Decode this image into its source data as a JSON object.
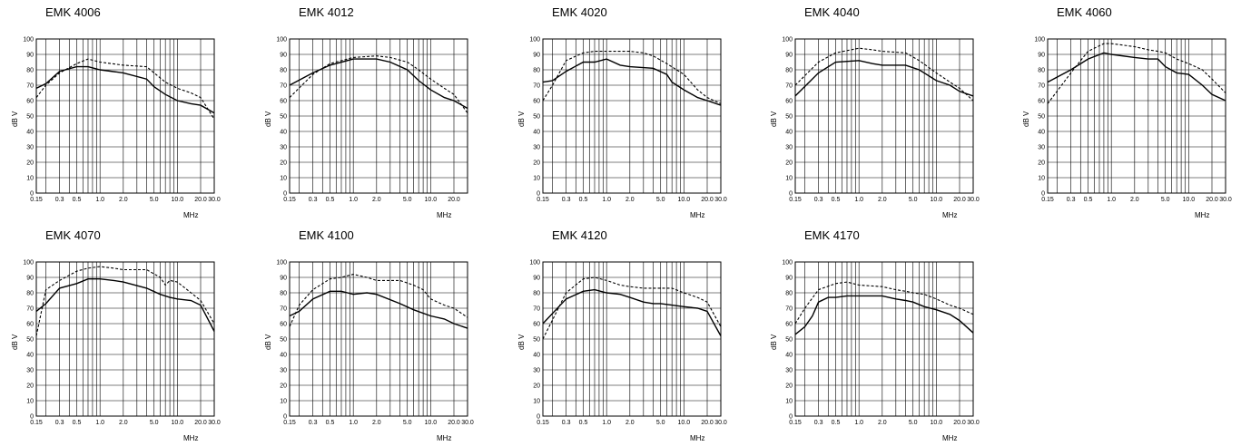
{
  "chart_data": [
    {
      "type": "line",
      "title": "EMK 4006",
      "xlabel": "MHz",
      "ylabel": "dB  V",
      "xlog": true,
      "xlim": [
        0.15,
        30.0
      ],
      "ylim": [
        0,
        100
      ],
      "xticks": [
        "0.15",
        "0.3",
        "0.5",
        "1.0",
        "2.0",
        "5.0",
        "10.0",
        "20.0",
        "30.0"
      ],
      "yticks": [
        "0",
        "10",
        "20",
        "30",
        "40",
        "50",
        "60",
        "70",
        "80",
        "90",
        "100"
      ],
      "series": [
        {
          "style": "solid",
          "x": [
            0.15,
            0.2,
            0.3,
            0.5,
            0.7,
            1.0,
            2.0,
            4.0,
            5.0,
            7.0,
            10.0,
            15.0,
            20.0,
            30.0
          ],
          "y": [
            68,
            71,
            79,
            82,
            82,
            80,
            78,
            74,
            69,
            64,
            60,
            58,
            57,
            52
          ]
        },
        {
          "style": "dashed",
          "x": [
            0.15,
            0.2,
            0.3,
            0.5,
            0.7,
            1.0,
            2.0,
            4.0,
            5.0,
            7.0,
            10.0,
            15.0,
            20.0,
            30.0
          ],
          "y": [
            62,
            70,
            78,
            84,
            87,
            85,
            83,
            82,
            78,
            72,
            68,
            65,
            62,
            48
          ]
        }
      ]
    },
    {
      "type": "line",
      "title": "EMK 4012",
      "xlabel": "MHz",
      "ylabel": "dB  V",
      "xlog": true,
      "xlim": [
        0.15,
        30.0
      ],
      "ylim": [
        0,
        100
      ],
      "xticks": [
        "0.15",
        "0.3",
        "0.5",
        "1.0",
        "2.0",
        "5.0",
        "10.0",
        "20.0"
      ],
      "yticks": [
        "0",
        "10",
        "20",
        "30",
        "40",
        "50",
        "60",
        "70",
        "80",
        "90",
        "100"
      ],
      "series": [
        {
          "style": "solid",
          "x": [
            0.15,
            0.3,
            0.5,
            1.0,
            2.0,
            3.0,
            5.0,
            7.0,
            10.0,
            15.0,
            20.0,
            30.0
          ],
          "y": [
            70,
            78,
            83,
            87,
            87,
            85,
            80,
            73,
            67,
            62,
            60,
            55
          ]
        },
        {
          "style": "dashed",
          "x": [
            0.15,
            0.3,
            0.5,
            1.0,
            2.0,
            3.0,
            5.0,
            7.0,
            10.0,
            15.0,
            20.0,
            30.0
          ],
          "y": [
            62,
            77,
            84,
            88,
            89,
            88,
            85,
            80,
            74,
            68,
            64,
            52
          ]
        }
      ]
    },
    {
      "type": "line",
      "title": "EMK 4020",
      "xlabel": "MHz",
      "ylabel": "dB  V",
      "xlog": true,
      "xlim": [
        0.15,
        30.0
      ],
      "ylim": [
        0,
        100
      ],
      "xticks": [
        "0.15",
        "0.3",
        "0.5",
        "1.0",
        "2.0",
        "5.0",
        "10.0",
        "20.0",
        "30.0"
      ],
      "yticks": [
        "0",
        "10",
        "20",
        "30",
        "40",
        "50",
        "60",
        "70",
        "80",
        "90",
        "100"
      ],
      "series": [
        {
          "style": "solid",
          "x": [
            0.15,
            0.2,
            0.3,
            0.5,
            0.7,
            1.0,
            1.5,
            2.0,
            4.0,
            6.0,
            7.0,
            10.0,
            15.0,
            20.0,
            30.0
          ],
          "y": [
            72,
            73,
            79,
            85,
            85,
            87,
            83,
            82,
            81,
            77,
            72,
            67,
            62,
            60,
            57
          ]
        },
        {
          "style": "dashed",
          "x": [
            0.15,
            0.2,
            0.3,
            0.5,
            0.7,
            1.0,
            2.0,
            3.0,
            4.0,
            6.0,
            10.0,
            15.0,
            20.0,
            30.0
          ],
          "y": [
            60,
            70,
            86,
            91,
            92,
            92,
            92,
            91,
            89,
            84,
            77,
            67,
            62,
            58
          ]
        }
      ]
    },
    {
      "type": "line",
      "title": "EMK 4040",
      "xlabel": "MHz",
      "ylabel": "dB  V",
      "xlog": true,
      "xlim": [
        0.15,
        30.0
      ],
      "ylim": [
        0,
        100
      ],
      "xticks": [
        "0.15",
        "0.3",
        "0.5",
        "1.0",
        "2.0",
        "5.0",
        "10.0",
        "20.0",
        "30.0"
      ],
      "yticks": [
        "0",
        "10",
        "20",
        "30",
        "40",
        "50",
        "60",
        "70",
        "80",
        "90",
        "100"
      ],
      "series": [
        {
          "style": "solid",
          "x": [
            0.15,
            0.3,
            0.5,
            1.0,
            1.5,
            2.0,
            4.0,
            6.0,
            10.0,
            15.0,
            20.0,
            30.0
          ],
          "y": [
            63,
            78,
            85,
            86,
            84,
            83,
            83,
            80,
            73,
            70,
            66,
            63
          ]
        },
        {
          "style": "dashed",
          "x": [
            0.15,
            0.3,
            0.5,
            1.0,
            1.5,
            2.0,
            4.0,
            6.0,
            10.0,
            15.0,
            20.0,
            30.0
          ],
          "y": [
            70,
            85,
            91,
            94,
            93,
            92,
            91,
            86,
            78,
            72,
            68,
            60
          ]
        }
      ]
    },
    {
      "type": "line",
      "title": "EMK 4060",
      "xlabel": "MHz",
      "ylabel": "dB  V",
      "xlog": true,
      "xlim": [
        0.15,
        30.0
      ],
      "ylim": [
        0,
        100
      ],
      "xticks": [
        "0.15",
        "0.3",
        "0.5",
        "1.0",
        "2.0",
        "5.0",
        "10.0",
        "20.0",
        "30.0"
      ],
      "yticks": [
        "0",
        "10",
        "20",
        "30",
        "40",
        "50",
        "60",
        "70",
        "80",
        "90",
        "100"
      ],
      "series": [
        {
          "style": "solid",
          "x": [
            0.15,
            0.3,
            0.5,
            0.8,
            1.0,
            2.0,
            3.0,
            4.0,
            5.0,
            7.0,
            10.0,
            15.0,
            20.0,
            30.0
          ],
          "y": [
            72,
            80,
            87,
            91,
            90,
            88,
            87,
            87,
            82,
            78,
            77,
            70,
            64,
            60
          ]
        },
        {
          "style": "dashed",
          "x": [
            0.15,
            0.3,
            0.5,
            0.8,
            1.0,
            2.0,
            3.0,
            4.0,
            5.0,
            7.0,
            10.0,
            15.0,
            20.0,
            30.0
          ],
          "y": [
            58,
            78,
            92,
            97,
            97,
            95,
            93,
            92,
            91,
            87,
            84,
            80,
            74,
            65
          ]
        }
      ]
    },
    {
      "type": "line",
      "title": "EMK 4070",
      "xlabel": "MHz",
      "ylabel": "dB  V",
      "xlog": true,
      "xlim": [
        0.15,
        30.0
      ],
      "ylim": [
        0,
        100
      ],
      "xticks": [
        "0.15",
        "0.3",
        "0.5",
        "1.0",
        "2.0",
        "5.0",
        "10.0",
        "20.0",
        "30.0"
      ],
      "yticks": [
        "0",
        "10",
        "20",
        "30",
        "40",
        "50",
        "60",
        "70",
        "80",
        "90",
        "100"
      ],
      "series": [
        {
          "style": "solid",
          "x": [
            0.15,
            0.2,
            0.3,
            0.5,
            0.7,
            1.0,
            1.5,
            2.0,
            4.0,
            6.0,
            8.0,
            10.0,
            15.0,
            20.0,
            30.0
          ],
          "y": [
            68,
            73,
            83,
            86,
            89,
            89,
            88,
            87,
            83,
            79,
            77,
            76,
            75,
            72,
            55
          ]
        },
        {
          "style": "dashed",
          "x": [
            0.15,
            0.2,
            0.3,
            0.5,
            0.7,
            1.0,
            1.5,
            2.0,
            4.0,
            6.0,
            7.0,
            8.0,
            10.0,
            15.0,
            20.0,
            30.0
          ],
          "y": [
            52,
            82,
            88,
            94,
            96,
            97,
            96,
            95,
            95,
            90,
            85,
            88,
            87,
            80,
            75,
            60
          ]
        }
      ]
    },
    {
      "type": "line",
      "title": "EMK 4100",
      "xlabel": "MHz",
      "ylabel": "dB  V",
      "xlog": true,
      "xlim": [
        0.15,
        30.0
      ],
      "ylim": [
        0,
        100
      ],
      "xticks": [
        "0.15",
        "0.3",
        "0.5",
        "1.0",
        "2.0",
        "5.0",
        "10.0",
        "20.0",
        "30.0"
      ],
      "yticks": [
        "0",
        "10",
        "20",
        "30",
        "40",
        "50",
        "60",
        "70",
        "80",
        "90",
        "100"
      ],
      "series": [
        {
          "style": "solid",
          "x": [
            0.15,
            0.2,
            0.3,
            0.5,
            0.7,
            1.0,
            1.5,
            2.0,
            4.0,
            6.0,
            10.0,
            15.0,
            20.0,
            30.0
          ],
          "y": [
            65,
            68,
            76,
            81,
            81,
            79,
            80,
            79,
            73,
            69,
            65,
            63,
            60,
            57
          ]
        },
        {
          "style": "dashed",
          "x": [
            0.15,
            0.2,
            0.3,
            0.5,
            0.7,
            1.0,
            1.5,
            2.0,
            4.0,
            6.0,
            8.0,
            10.0,
            15.0,
            20.0,
            30.0
          ],
          "y": [
            58,
            72,
            82,
            89,
            90,
            92,
            90,
            88,
            88,
            85,
            82,
            76,
            72,
            70,
            64
          ]
        }
      ]
    },
    {
      "type": "line",
      "title": "EMK 4120",
      "xlabel": "MHz",
      "ylabel": "dB  V",
      "xlog": true,
      "xlim": [
        0.15,
        30.0
      ],
      "ylim": [
        0,
        100
      ],
      "xticks": [
        "0.15",
        "0.3",
        "0.5",
        "1.0",
        "2.0",
        "5.0",
        "10.0",
        "20.0",
        "30.0"
      ],
      "yticks": [
        "0",
        "10",
        "20",
        "30",
        "40",
        "50",
        "60",
        "70",
        "80",
        "90",
        "100"
      ],
      "series": [
        {
          "style": "solid",
          "x": [
            0.15,
            0.3,
            0.5,
            0.7,
            1.0,
            1.5,
            2.0,
            3.0,
            4.0,
            5.0,
            7.0,
            10.0,
            15.0,
            20.0,
            30.0
          ],
          "y": [
            60,
            76,
            81,
            82,
            80,
            79,
            77,
            74,
            73,
            73,
            72,
            71,
            70,
            68,
            52
          ]
        },
        {
          "style": "dashed",
          "x": [
            0.15,
            0.3,
            0.5,
            0.7,
            1.0,
            1.5,
            2.0,
            3.0,
            4.0,
            5.0,
            7.0,
            10.0,
            15.0,
            20.0,
            30.0
          ],
          "y": [
            50,
            80,
            89,
            90,
            88,
            85,
            84,
            83,
            83,
            83,
            83,
            80,
            77,
            74,
            58
          ]
        }
      ]
    },
    {
      "type": "line",
      "title": "EMK 4170",
      "xlabel": "MHz",
      "ylabel": "dB  V",
      "xlog": true,
      "xlim": [
        0.15,
        30.0
      ],
      "ylim": [
        0,
        100
      ],
      "xticks": [
        "0.15",
        "0.3",
        "0.5",
        "1.0",
        "2.0",
        "5.0",
        "10.0",
        "20.0",
        "30.0"
      ],
      "yticks": [
        "0",
        "10",
        "20",
        "30",
        "40",
        "50",
        "60",
        "70",
        "80",
        "90",
        "100"
      ],
      "series": [
        {
          "style": "solid",
          "x": [
            0.15,
            0.2,
            0.25,
            0.3,
            0.4,
            0.5,
            0.7,
            1.0,
            2.0,
            3.0,
            4.0,
            5.0,
            7.0,
            10.0,
            15.0,
            20.0,
            30.0
          ],
          "y": [
            53,
            58,
            65,
            74,
            77,
            77,
            78,
            78,
            78,
            76,
            75,
            74,
            71,
            69,
            66,
            62,
            54
          ]
        },
        {
          "style": "dashed",
          "x": [
            0.15,
            0.2,
            0.3,
            0.5,
            0.7,
            1.0,
            2.0,
            3.0,
            4.0,
            5.0,
            7.0,
            10.0,
            15.0,
            20.0,
            30.0
          ],
          "y": [
            60,
            70,
            82,
            86,
            87,
            85,
            84,
            82,
            81,
            80,
            79,
            76,
            72,
            70,
            66
          ]
        }
      ]
    }
  ]
}
